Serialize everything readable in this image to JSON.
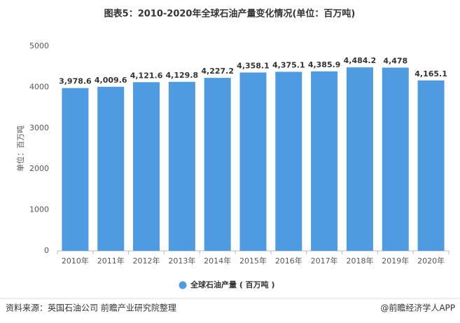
{
  "chart_data": {
    "type": "bar",
    "title": "图表5：2010-2020年全球石油产量变化情况(单位：百万吨)",
    "y_label": "单位：百万吨",
    "categories": [
      "2010年",
      "2011年",
      "2012年",
      "2013年",
      "2014年",
      "2015年",
      "2016年",
      "2017年",
      "2018年",
      "2019年",
      "2020年"
    ],
    "series": [
      {
        "name": "全球石油产量 ( 百万吨 )",
        "color": "#4f9be2",
        "values": [
          3978.6,
          4009.6,
          4121.6,
          4129.8,
          4227.2,
          4358.1,
          4375.1,
          4385.9,
          4484.2,
          4478,
          4165.1
        ],
        "value_labels": [
          "3,978.6",
          "4,009.6",
          "4,121.6",
          "4,129.8",
          "4,227.2",
          "4,358.1",
          "4,375.1",
          "4,385.9",
          "4,484.2",
          "4,478",
          "4,165.1"
        ]
      }
    ],
    "ylim": [
      0,
      5000
    ],
    "yticks": [
      0,
      1000,
      2000,
      3000,
      4000,
      5000
    ],
    "grid": false,
    "source": "资料来源：英国石油公司 前瞻产业研究院整理",
    "credit": "@前瞻经济学人APP"
  }
}
